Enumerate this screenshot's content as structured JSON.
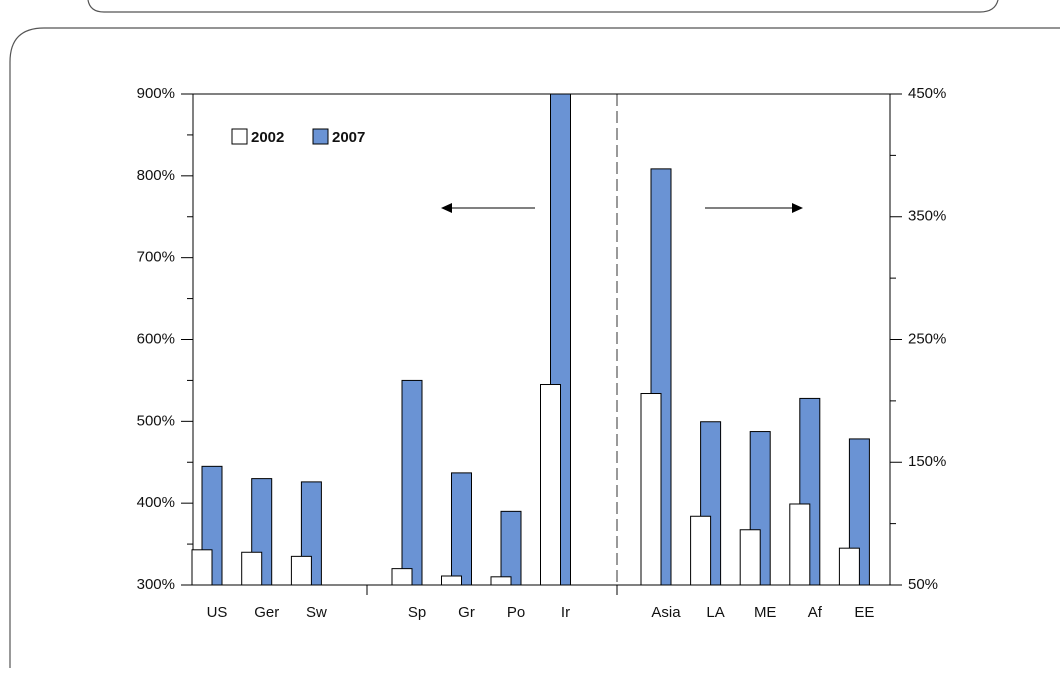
{
  "chart_data": [
    {
      "type": "bar",
      "categories": [
        "US",
        "Ger",
        "Sw",
        "Sp",
        "Gr",
        "Po",
        "Ir"
      ],
      "series": [
        {
          "name": "2002",
          "color": "#ffffff",
          "values": [
            343,
            340,
            335,
            320,
            311,
            310,
            545
          ]
        },
        {
          "name": "2007",
          "color": "#6a93d4",
          "values": [
            445,
            430,
            426,
            550,
            437,
            390,
            900
          ]
        }
      ],
      "ylim": [
        300,
        900
      ],
      "yticks": [
        {
          "value": 300,
          "label": "300%"
        },
        {
          "value": 400,
          "label": "400%"
        },
        {
          "value": 500,
          "label": "500%"
        },
        {
          "value": 600,
          "label": "600%"
        },
        {
          "value": 700,
          "label": "700%"
        },
        {
          "value": 800,
          "label": "800%"
        },
        {
          "value": 900,
          "label": "900%"
        }
      ],
      "grid": false
    },
    {
      "type": "bar",
      "categories": [
        "Asia",
        "LA",
        "ME",
        "Af",
        "EE"
      ],
      "series": [
        {
          "color": "#ffffff",
          "axis": "y2",
          "values": [
            206,
            106,
            95,
            116,
            80
          ]
        },
        {
          "color": "#6a93d4",
          "axis": "y2",
          "values": [
            389,
            183,
            175,
            202,
            169
          ]
        }
      ],
      "y2lim": [
        50,
        450
      ],
      "y2ticks": [
        {
          "value": 50,
          "label": "50%"
        },
        {
          "value": 150,
          "label": "150%"
        },
        {
          "value": 250,
          "label": "250%"
        },
        {
          "value": 350,
          "label": "350%"
        },
        {
          "value": 450,
          "label": "450%"
        }
      ],
      "grid": false
    }
  ]
}
